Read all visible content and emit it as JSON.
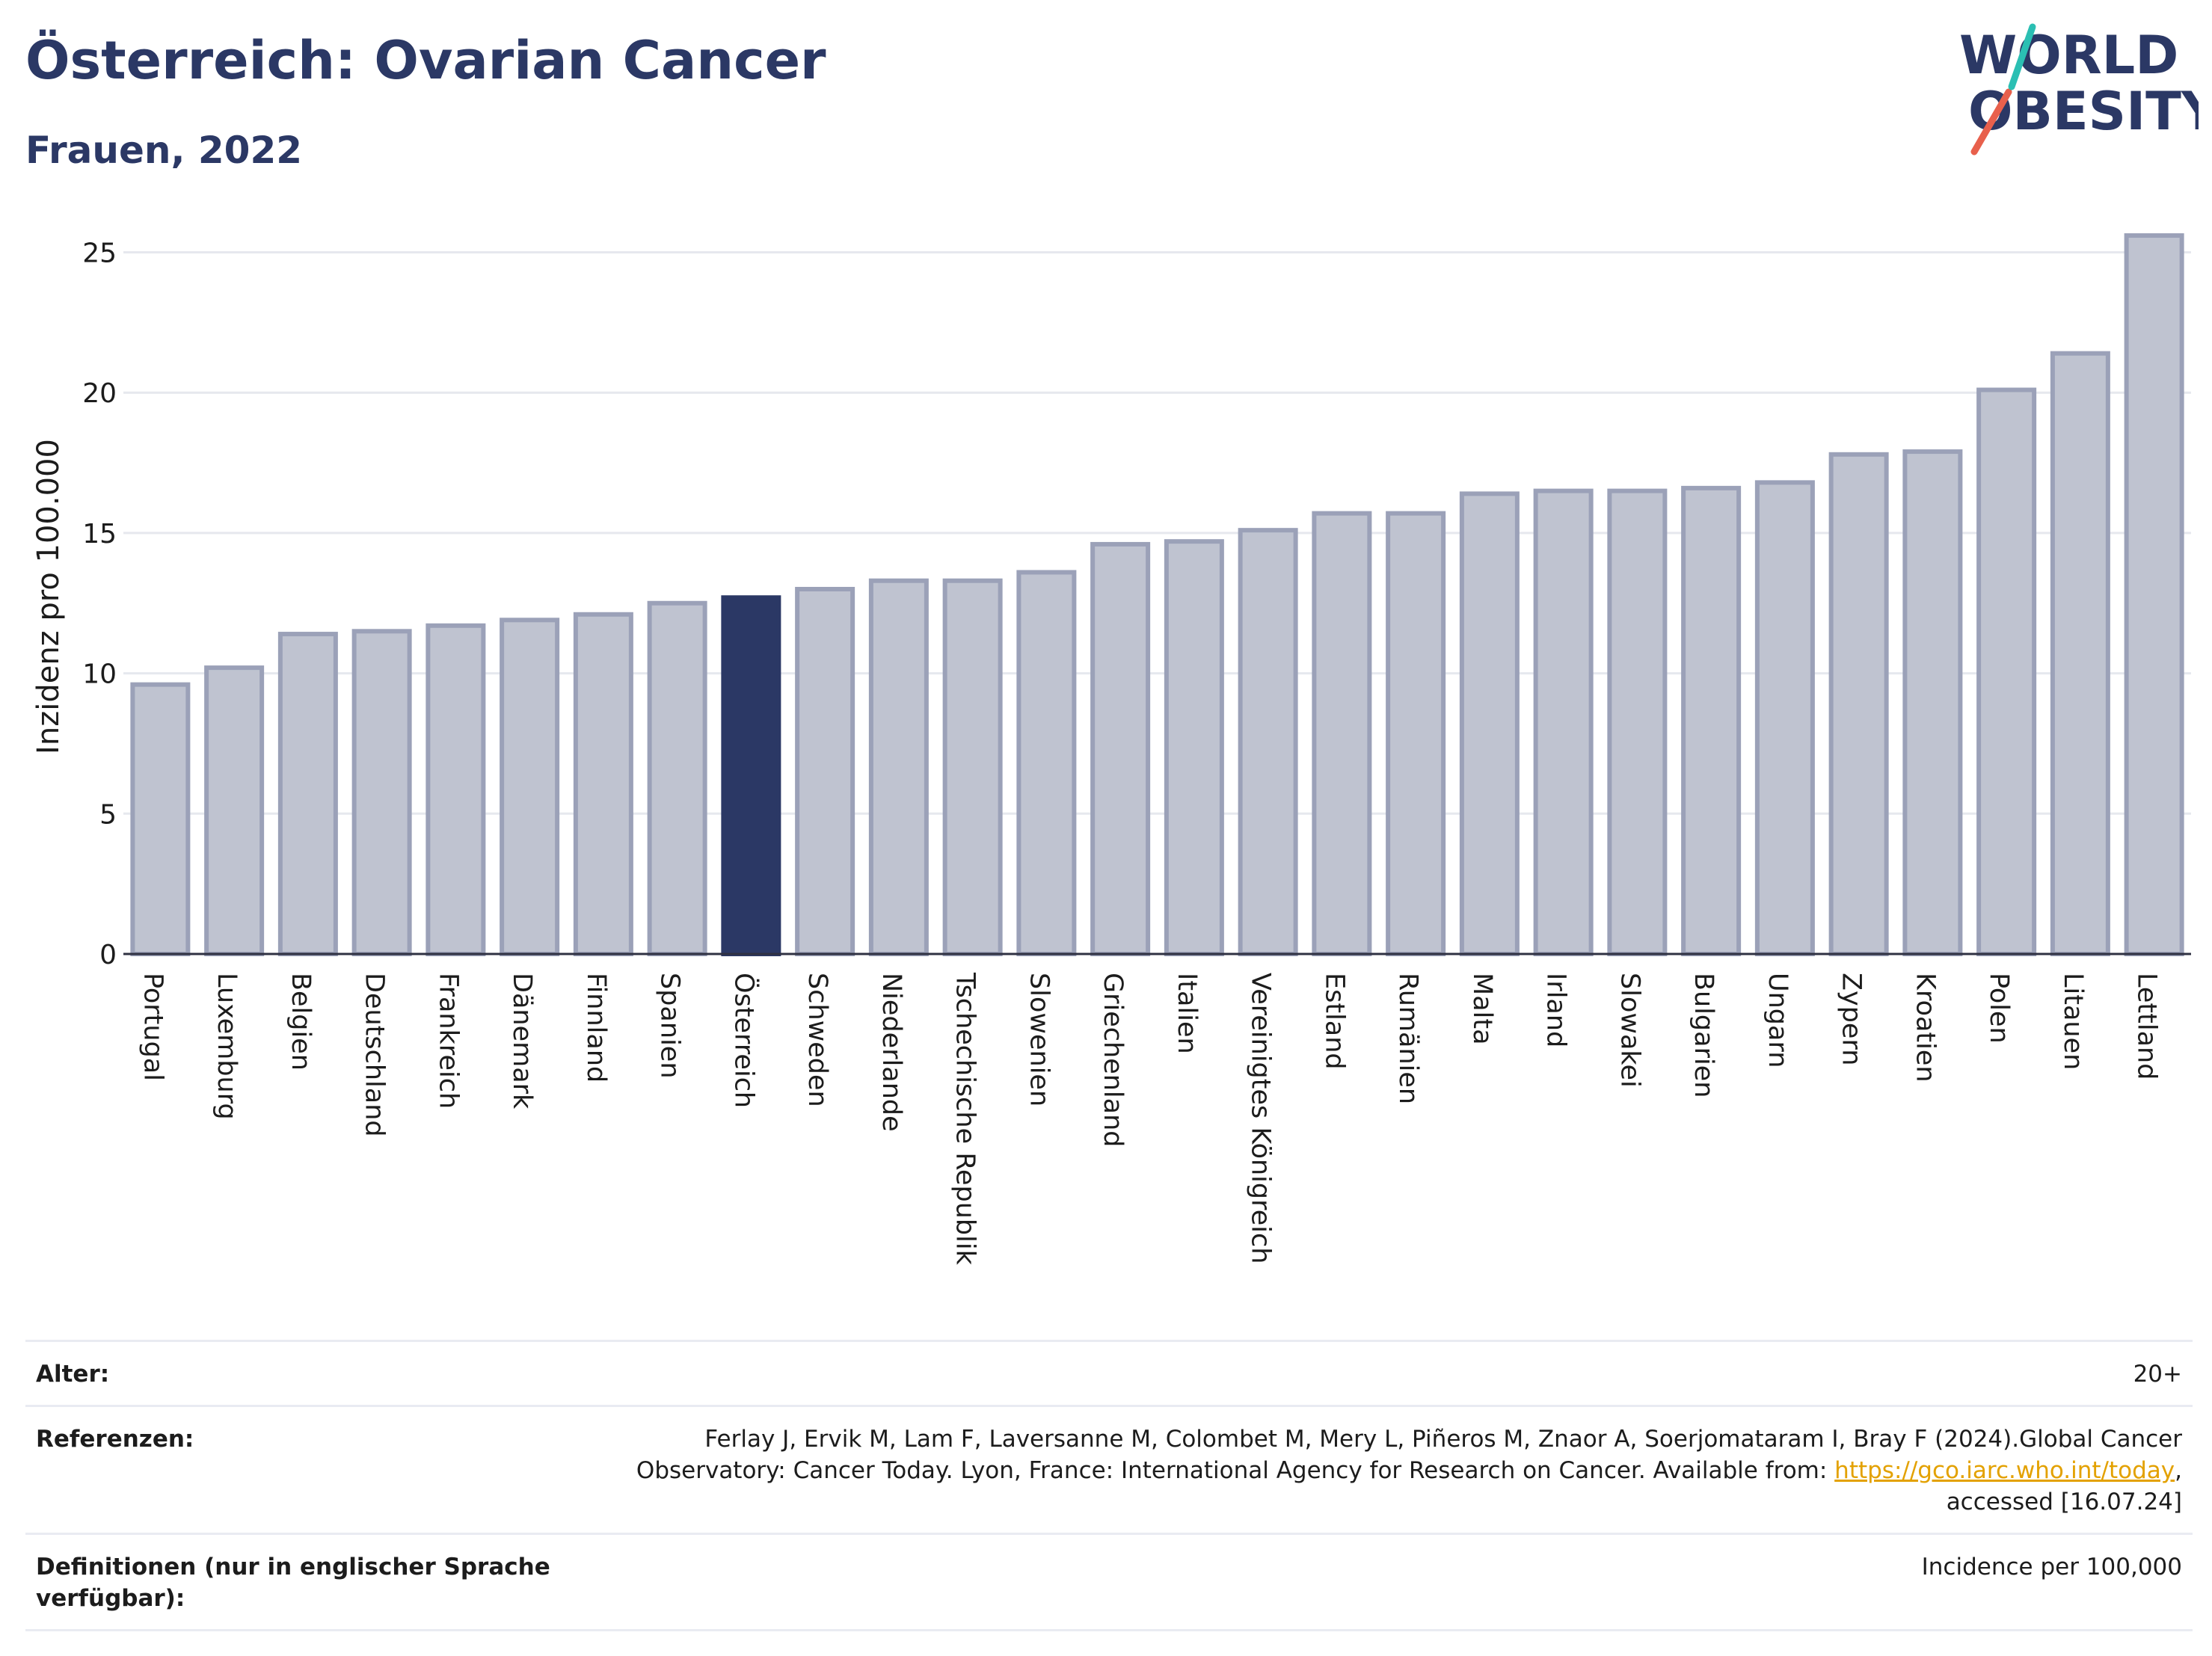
{
  "header": {
    "title": "Österreich: Ovarian Cancer",
    "subtitle": "Frauen, 2022"
  },
  "logo": {
    "line1": "WORLD",
    "line2": "OBESITY",
    "colors": {
      "text": "#2b3865",
      "slash_red": "#e8604c",
      "slash_teal": "#2bbfb3"
    }
  },
  "chart_data": {
    "type": "bar",
    "title": "Österreich: Ovarian Cancer",
    "subtitle": "Frauen, 2022",
    "xlabel": "",
    "ylabel": "Inzidenz pro 100.000",
    "ylim": [
      0,
      26
    ],
    "yticks": [
      0,
      5,
      10,
      15,
      20,
      25
    ],
    "grid": true,
    "highlight": "Österreich",
    "colors": {
      "bar": "#bfc3d0",
      "bar_edge": "#9ba1b8",
      "highlight": "#2b3865"
    },
    "categories": [
      "Portugal",
      "Luxemburg",
      "Belgien",
      "Deutschland",
      "Frankreich",
      "Dänemark",
      "Finnland",
      "Spanien",
      "Österreich",
      "Schweden",
      "Niederlande",
      "Tschechische Republik",
      "Slowenien",
      "Griechenland",
      "Italien",
      "Vereinigtes Königreich",
      "Estland",
      "Rumänien",
      "Malta",
      "Irland",
      "Slowakei",
      "Bulgarien",
      "Ungarn",
      "Zypern",
      "Kroatien",
      "Polen",
      "Litauen",
      "Lettland"
    ],
    "values": [
      9.6,
      10.2,
      11.4,
      11.5,
      11.7,
      11.9,
      12.1,
      12.5,
      12.7,
      13.0,
      13.3,
      13.3,
      13.6,
      14.6,
      14.7,
      15.1,
      15.7,
      15.7,
      16.4,
      16.5,
      16.5,
      16.6,
      16.8,
      17.8,
      17.9,
      20.1,
      21.4,
      25.6
    ]
  },
  "info": {
    "age_label": "Alter:",
    "age_value": "20+",
    "refs_label": "Referenzen:",
    "refs_text_1": "Ferlay J, Ervik M, Lam F, Laversanne M, Colombet M, Mery L, Piñeros M, Znaor A, Soerjomataram I, Bray F (2024).Global Cancer Observatory: Cancer Today. Lyon, France: International Agency for Research on Cancer. Available from: ",
    "refs_link": "https://gco.iarc.who.int/today",
    "refs_text_2": ", accessed [16.07.24]",
    "def_label": "Definitionen (nur in englischer Sprache verfügbar):",
    "def_value": "Incidence per 100,000"
  }
}
